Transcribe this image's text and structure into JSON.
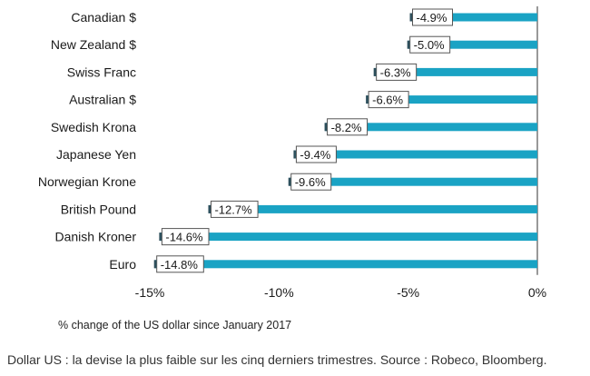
{
  "chart_data": {
    "type": "bar",
    "orientation": "horizontal",
    "categories": [
      "Canadian $",
      "New Zealand $",
      "Swiss Franc",
      "Australian $",
      "Swedish Krona",
      "Japanese Yen",
      "Norwegian Krone",
      "British Pound",
      "Danish Kroner",
      "Euro"
    ],
    "values": [
      -4.9,
      -5.0,
      -6.3,
      -6.6,
      -8.2,
      -9.4,
      -9.6,
      -12.7,
      -14.6,
      -14.8
    ],
    "data_labels": [
      "-4.9%",
      "-5.0%",
      "-6.3%",
      "-6.6%",
      "-8.2%",
      "-9.4%",
      "-9.6%",
      "-12.7%",
      "-14.6%",
      "-14.8%"
    ],
    "x_ticks": [
      -15,
      -10,
      -5,
      0
    ],
    "x_tick_labels": [
      "-15%",
      "-10%",
      "-5%",
      "0%"
    ],
    "xlim": [
      -15,
      0
    ],
    "grid": false,
    "legend": "none",
    "bar_color": "#1aa3c4",
    "axis_note": "% change of the US dollar since January 2017"
  },
  "caption": "Dollar US : la devise la plus faible sur les cinq derniers trimestres. Source : Robeco, Bloomberg."
}
